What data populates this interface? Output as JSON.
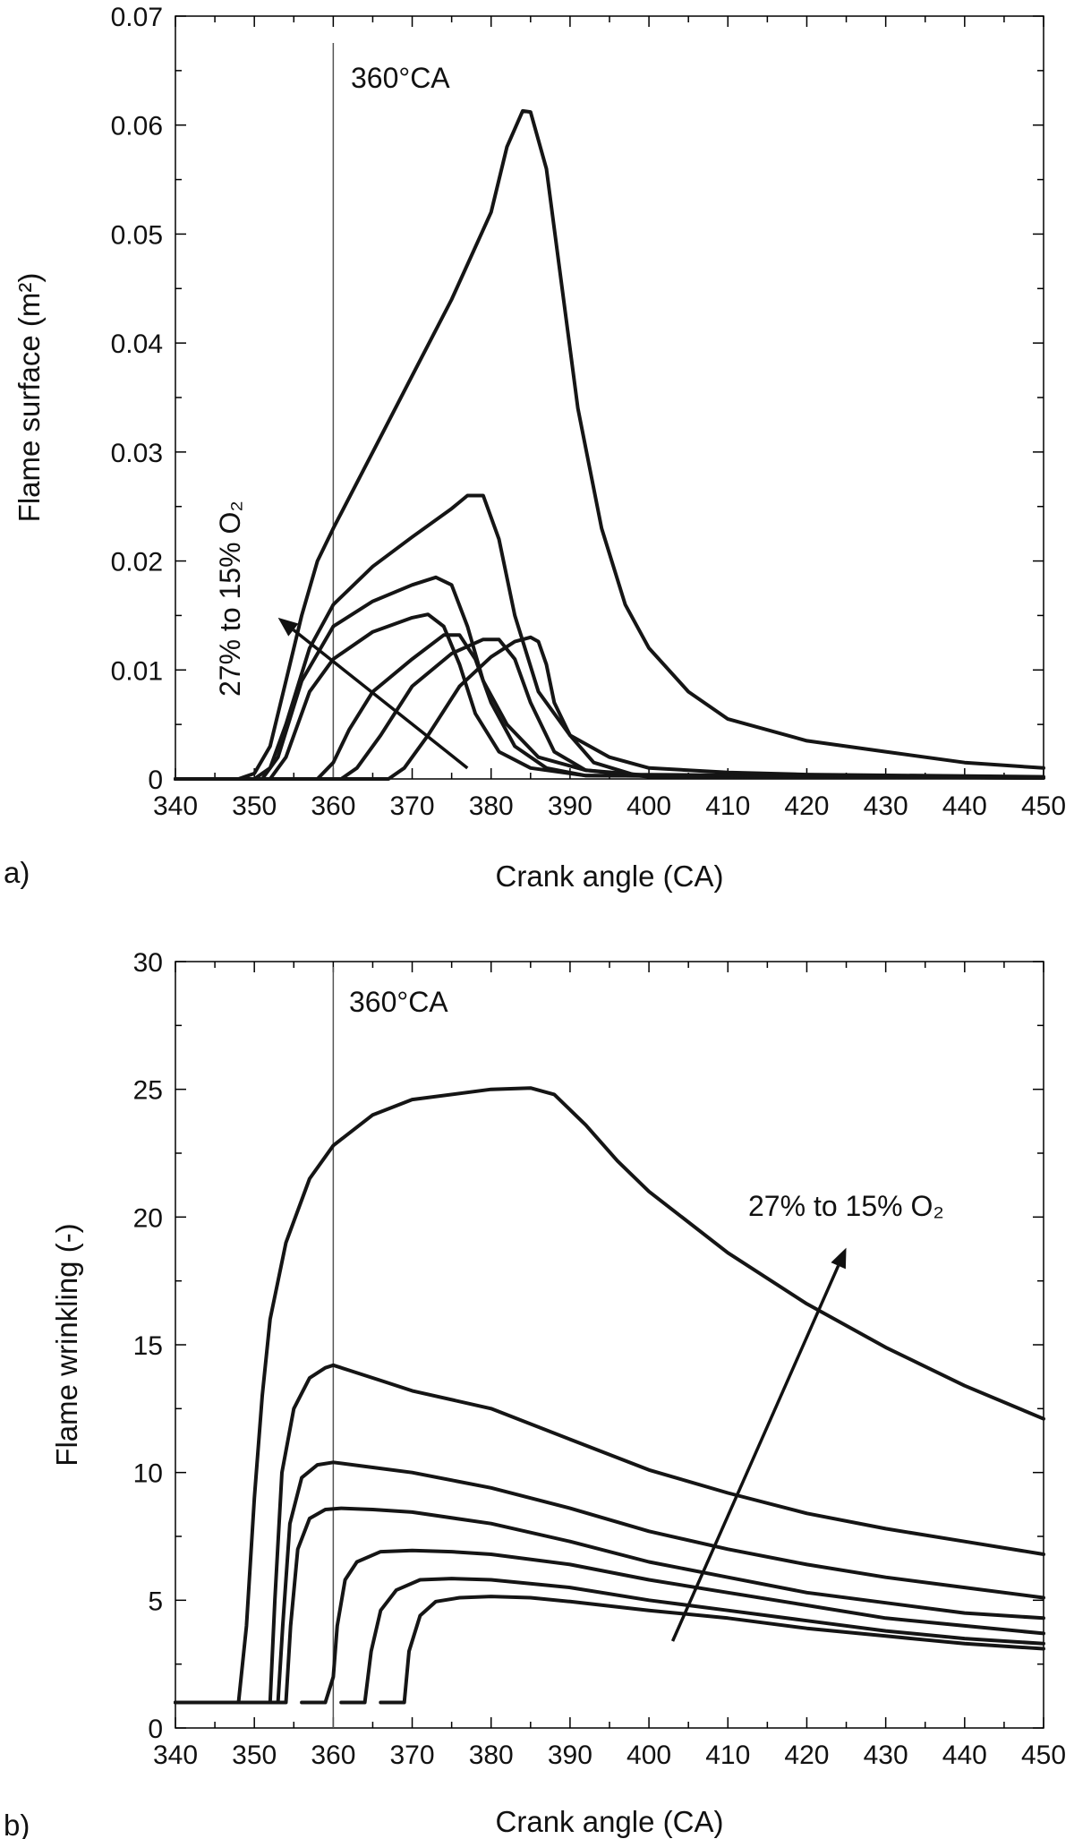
{
  "chart_data": [
    {
      "panel": "a)",
      "type": "line",
      "xlabel": "Crank angle (CA)",
      "ylabel": "Flame surface (m²)",
      "xlim": [
        340,
        450
      ],
      "ylim": [
        0,
        0.07
      ],
      "xticks": [
        340,
        350,
        360,
        370,
        380,
        390,
        400,
        410,
        420,
        430,
        440,
        450
      ],
      "yticks": [
        0,
        0.01,
        0.02,
        0.03,
        0.04,
        0.05,
        0.06,
        0.07
      ],
      "ytick_labels": [
        "0",
        "0.01",
        "0.02",
        "0.03",
        "0.04",
        "0.05",
        "0.06",
        "0.07"
      ],
      "vline": {
        "x": 360,
        "label": "360°CA"
      },
      "annotation": {
        "text": "27% to 15% O₂",
        "from": [
          377,
          0.001
        ],
        "to": [
          353,
          0.0148
        ]
      },
      "series": [
        {
          "points": [
            [
              340,
              0
            ],
            [
              348,
              0
            ],
            [
              350,
              0.0005
            ],
            [
              352,
              0.003
            ],
            [
              354,
              0.009
            ],
            [
              356,
              0.015
            ],
            [
              358,
              0.02
            ],
            [
              360,
              0.023
            ],
            [
              365,
              0.03
            ],
            [
              370,
              0.037
            ],
            [
              375,
              0.044
            ],
            [
              380,
              0.052
            ],
            [
              382,
              0.058
            ],
            [
              384,
              0.0613
            ],
            [
              385,
              0.0612
            ],
            [
              387,
              0.056
            ],
            [
              389,
              0.045
            ],
            [
              391,
              0.034
            ],
            [
              394,
              0.023
            ],
            [
              397,
              0.016
            ],
            [
              400,
              0.012
            ],
            [
              405,
              0.008
            ],
            [
              410,
              0.0055
            ],
            [
              420,
              0.0035
            ],
            [
              430,
              0.0025
            ],
            [
              440,
              0.0015
            ],
            [
              450,
              0.001
            ]
          ]
        },
        {
          "points": [
            [
              340,
              0
            ],
            [
              350,
              0
            ],
            [
              352,
              0.001
            ],
            [
              354,
              0.005
            ],
            [
              357,
              0.012
            ],
            [
              360,
              0.016
            ],
            [
              365,
              0.0195
            ],
            [
              370,
              0.0222
            ],
            [
              375,
              0.0248
            ],
            [
              377,
              0.026
            ],
            [
              379,
              0.026
            ],
            [
              381,
              0.022
            ],
            [
              383,
              0.015
            ],
            [
              386,
              0.008
            ],
            [
              390,
              0.004
            ],
            [
              395,
              0.002
            ],
            [
              400,
              0.001
            ],
            [
              410,
              0.0006
            ],
            [
              420,
              0.0004
            ],
            [
              450,
              0.0002
            ]
          ]
        },
        {
          "points": [
            [
              340,
              0
            ],
            [
              351,
              0
            ],
            [
              353,
              0.002
            ],
            [
              356,
              0.009
            ],
            [
              360,
              0.014
            ],
            [
              365,
              0.0163
            ],
            [
              370,
              0.0178
            ],
            [
              373,
              0.0185
            ],
            [
              375,
              0.0178
            ],
            [
              377,
              0.014
            ],
            [
              379,
              0.009
            ],
            [
              382,
              0.005
            ],
            [
              386,
              0.002
            ],
            [
              392,
              0.0008
            ],
            [
              400,
              0.0003
            ],
            [
              450,
              0.0001
            ]
          ]
        },
        {
          "points": [
            [
              340,
              0
            ],
            [
              352,
              0
            ],
            [
              354,
              0.002
            ],
            [
              357,
              0.008
            ],
            [
              360,
              0.011
            ],
            [
              365,
              0.0135
            ],
            [
              370,
              0.0148
            ],
            [
              372,
              0.0151
            ],
            [
              374,
              0.014
            ],
            [
              376,
              0.0105
            ],
            [
              378,
              0.006
            ],
            [
              381,
              0.0025
            ],
            [
              385,
              0.001
            ],
            [
              392,
              0.0003
            ],
            [
              450,
              0.0001
            ]
          ]
        },
        {
          "points": [
            [
              340,
              0
            ],
            [
              358,
              0
            ],
            [
              360,
              0.0015
            ],
            [
              362,
              0.0045
            ],
            [
              365,
              0.008
            ],
            [
              370,
              0.011
            ],
            [
              374,
              0.0132
            ],
            [
              376,
              0.0132
            ],
            [
              378,
              0.011
            ],
            [
              380,
              0.007
            ],
            [
              383,
              0.003
            ],
            [
              387,
              0.001
            ],
            [
              392,
              0.0003
            ],
            [
              450,
              0.0001
            ]
          ]
        },
        {
          "points": [
            [
              340,
              0
            ],
            [
              361,
              0
            ],
            [
              363,
              0.001
            ],
            [
              366,
              0.004
            ],
            [
              370,
              0.0085
            ],
            [
              375,
              0.0115
            ],
            [
              379,
              0.0128
            ],
            [
              381,
              0.0128
            ],
            [
              383,
              0.011
            ],
            [
              385,
              0.007
            ],
            [
              388,
              0.0025
            ],
            [
              392,
              0.0008
            ],
            [
              400,
              0.0002
            ],
            [
              450,
              0.0001
            ]
          ]
        },
        {
          "points": [
            [
              340,
              0
            ],
            [
              367,
              0
            ],
            [
              369,
              0.001
            ],
            [
              372,
              0.004
            ],
            [
              376,
              0.0085
            ],
            [
              380,
              0.0112
            ],
            [
              383,
              0.0126
            ],
            [
              385,
              0.013
            ],
            [
              386,
              0.0126
            ],
            [
              387,
              0.0105
            ],
            [
              388,
              0.007
            ],
            [
              390,
              0.004
            ],
            [
              393,
              0.0015
            ],
            [
              398,
              0.0004
            ],
            [
              450,
              0.0001
            ]
          ]
        }
      ]
    },
    {
      "panel": "b)",
      "type": "line",
      "xlabel": "Crank angle (CA)",
      "ylabel": "Flame wrinkling (-)",
      "xlim": [
        340,
        450
      ],
      "ylim": [
        0,
        30
      ],
      "xticks": [
        340,
        350,
        360,
        370,
        380,
        390,
        400,
        410,
        420,
        430,
        440,
        450
      ],
      "yticks": [
        0,
        5,
        10,
        15,
        20,
        25,
        30
      ],
      "ytick_labels": [
        "0",
        "5",
        "10",
        "15",
        "20",
        "25",
        "30"
      ],
      "vline": {
        "x": 360,
        "label": "360°CA"
      },
      "annotation": {
        "text": "27% to 15% O₂",
        "from": [
          403,
          3.4
        ],
        "to": [
          425,
          18.8
        ]
      },
      "series": [
        {
          "points": [
            [
              340,
              1
            ],
            [
              348,
              1
            ],
            [
              349,
              4
            ],
            [
              350,
              9
            ],
            [
              351,
              13
            ],
            [
              352,
              16
            ],
            [
              354,
              19
            ],
            [
              357,
              21.5
            ],
            [
              360,
              22.8
            ],
            [
              365,
              24
            ],
            [
              370,
              24.6
            ],
            [
              380,
              25
            ],
            [
              385,
              25.05
            ],
            [
              388,
              24.8
            ],
            [
              392,
              23.6
            ],
            [
              396,
              22.2
            ],
            [
              400,
              21
            ],
            [
              410,
              18.6
            ],
            [
              420,
              16.6
            ],
            [
              430,
              14.9
            ],
            [
              440,
              13.4
            ],
            [
              450,
              12.1
            ]
          ]
        },
        {
          "points": [
            [
              340,
              1
            ],
            [
              352,
              1
            ],
            [
              352.6,
              5
            ],
            [
              353.5,
              10
            ],
            [
              355,
              12.5
            ],
            [
              357,
              13.7
            ],
            [
              359,
              14.1
            ],
            [
              360,
              14.2
            ],
            [
              362,
              14
            ],
            [
              366,
              13.6
            ],
            [
              370,
              13.2
            ],
            [
              380,
              12.5
            ],
            [
              390,
              11.3
            ],
            [
              400,
              10.1
            ],
            [
              410,
              9.2
            ],
            [
              420,
              8.4
            ],
            [
              430,
              7.8
            ],
            [
              440,
              7.3
            ],
            [
              450,
              6.8
            ]
          ]
        },
        {
          "points": [
            [
              340,
              1
            ],
            [
              353,
              1
            ],
            [
              353.6,
              4
            ],
            [
              354.5,
              8
            ],
            [
              356,
              9.8
            ],
            [
              358,
              10.3
            ],
            [
              360,
              10.4
            ],
            [
              365,
              10.2
            ],
            [
              370,
              10
            ],
            [
              380,
              9.4
            ],
            [
              390,
              8.6
            ],
            [
              400,
              7.7
            ],
            [
              410,
              7
            ],
            [
              420,
              6.4
            ],
            [
              430,
              5.9
            ],
            [
              440,
              5.5
            ],
            [
              450,
              5.1
            ]
          ]
        },
        {
          "points": [
            [
              340,
              1
            ],
            [
              354,
              1
            ],
            [
              354.6,
              4
            ],
            [
              355.5,
              7
            ],
            [
              357,
              8.2
            ],
            [
              359,
              8.55
            ],
            [
              361,
              8.6
            ],
            [
              365,
              8.55
            ],
            [
              370,
              8.45
            ],
            [
              380,
              8
            ],
            [
              390,
              7.3
            ],
            [
              400,
              6.5
            ],
            [
              410,
              5.9
            ],
            [
              420,
              5.3
            ],
            [
              430,
              4.9
            ],
            [
              440,
              4.5
            ],
            [
              450,
              4.3
            ]
          ]
        },
        {
          "points": [
            [
              356,
              1
            ],
            [
              359,
              1
            ],
            [
              360,
              2
            ],
            [
              360.5,
              4
            ],
            [
              361.5,
              5.8
            ],
            [
              363,
              6.5
            ],
            [
              366,
              6.9
            ],
            [
              370,
              6.95
            ],
            [
              375,
              6.9
            ],
            [
              380,
              6.8
            ],
            [
              390,
              6.4
            ],
            [
              400,
              5.8
            ],
            [
              410,
              5.3
            ],
            [
              420,
              4.8
            ],
            [
              430,
              4.3
            ],
            [
              440,
              4
            ],
            [
              450,
              3.7
            ]
          ]
        },
        {
          "points": [
            [
              361,
              1
            ],
            [
              364,
              1
            ],
            [
              364.8,
              3
            ],
            [
              366,
              4.6
            ],
            [
              368,
              5.4
            ],
            [
              371,
              5.8
            ],
            [
              375,
              5.85
            ],
            [
              380,
              5.8
            ],
            [
              390,
              5.5
            ],
            [
              400,
              5
            ],
            [
              410,
              4.6
            ],
            [
              420,
              4.2
            ],
            [
              430,
              3.8
            ],
            [
              440,
              3.5
            ],
            [
              450,
              3.3
            ]
          ]
        },
        {
          "points": [
            [
              366,
              1
            ],
            [
              369,
              1
            ],
            [
              369.6,
              3
            ],
            [
              371,
              4.4
            ],
            [
              373,
              4.95
            ],
            [
              376,
              5.1
            ],
            [
              380,
              5.15
            ],
            [
              385,
              5.1
            ],
            [
              390,
              4.95
            ],
            [
              400,
              4.6
            ],
            [
              410,
              4.3
            ],
            [
              420,
              3.9
            ],
            [
              430,
              3.6
            ],
            [
              440,
              3.3
            ],
            [
              450,
              3.1
            ]
          ]
        }
      ]
    }
  ]
}
